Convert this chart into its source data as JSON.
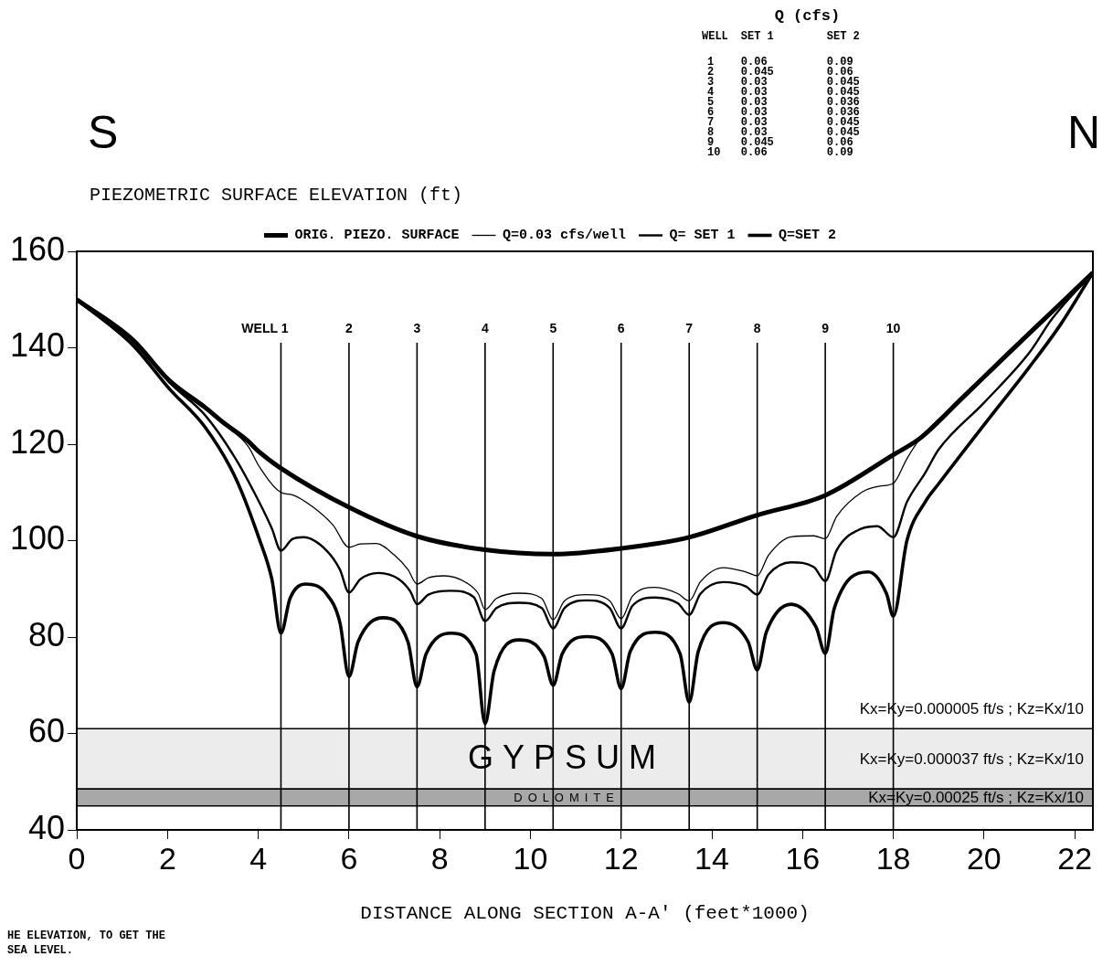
{
  "chart_data": [
    {
      "type": "line",
      "xlabel": "DISTANCE ALONG SECTION A-A' (feet*1000)",
      "ylabel": "PIEZOMETRIC SURFACE ELEVATION (ft)",
      "xlim": [
        0,
        22.4
      ],
      "ylim": [
        40,
        160
      ],
      "xticks": [
        0,
        2,
        4,
        6,
        8,
        10,
        12,
        14,
        16,
        18,
        20,
        22
      ],
      "yticks": [
        40,
        60,
        80,
        100,
        120,
        140,
        160
      ],
      "grid": false,
      "legend": "top",
      "marker": "none",
      "line_style": "solid",
      "series": [
        {
          "name": "ORIG. PIEZO. SURFACE",
          "color": "#000000",
          "x": [
            0,
            1.24,
            2.04,
            2.83,
            3.23,
            3.78,
            4.02,
            4.5,
            6,
            7.5,
            9,
            10.5,
            12,
            13.5,
            15,
            16.5,
            18,
            18.6,
            19.5,
            20.5,
            21.5,
            22.4
          ],
          "values": [
            150,
            141.6,
            133.2,
            127.6,
            124.5,
            120.6,
            118.4,
            115,
            106.9,
            100.9,
            98.1,
            97.2,
            98.4,
            100.7,
            105.3,
            109.4,
            117.8,
            121.3,
            129.4,
            138.5,
            147.5,
            155.6
          ]
        },
        {
          "name": "Q=0.03 cfs/well",
          "color": "#000000",
          "x": [
            0,
            1.24,
            2.04,
            2.83,
            3.23,
            3.78,
            4.02,
            4.5,
            4.75,
            5.2,
            5.65,
            6,
            6.25,
            6.6,
            7.0,
            7.3,
            7.5,
            7.75,
            8.1,
            8.6,
            8.85,
            9,
            9.25,
            9.75,
            10.25,
            10.5,
            10.75,
            11.25,
            11.75,
            12,
            12.25,
            12.75,
            13.25,
            13.5,
            13.75,
            14.25,
            14.75,
            15,
            15.25,
            15.75,
            16.25,
            16.5,
            16.75,
            17.3,
            17.7,
            18,
            18.3,
            18.6,
            19.5,
            20.5,
            21.5,
            22.4
          ],
          "values": [
            150,
            141.6,
            133,
            127.3,
            124.3,
            119.5,
            115.4,
            110,
            109.5,
            107,
            103.2,
            98.6,
            99.3,
            99.4,
            97,
            94,
            91,
            92.3,
            92.7,
            91.2,
            89,
            85.7,
            88,
            89.1,
            88,
            83.6,
            87.5,
            88.8,
            87.5,
            83.8,
            88.5,
            90.3,
            89,
            87.5,
            91.5,
            94.4,
            93.5,
            92.7,
            97,
            100.8,
            101,
            100.4,
            105,
            110,
            111.3,
            111.9,
            117,
            121.3,
            129.4,
            138.5,
            147.5,
            155.6
          ]
        },
        {
          "name": "Q= SET 1",
          "color": "#000000",
          "x": [
            0,
            1.24,
            2.04,
            2.83,
            3.5,
            4.02,
            4.3,
            4.5,
            4.75,
            5.0,
            5.5,
            5.8,
            6,
            6.25,
            6.65,
            7.1,
            7.35,
            7.5,
            7.75,
            8.25,
            8.75,
            9,
            9.25,
            9.75,
            10.25,
            10.5,
            10.75,
            11.25,
            11.75,
            12,
            12.25,
            12.75,
            13.25,
            13.5,
            13.75,
            14.25,
            14.75,
            15,
            15.25,
            15.75,
            16.25,
            16.5,
            16.75,
            17.3,
            17.65,
            18,
            18.3,
            18.7,
            19,
            20,
            21,
            21.5,
            22.4
          ],
          "values": [
            150,
            141.6,
            132.8,
            126,
            117,
            108,
            102.5,
            97.9,
            100.3,
            100.7,
            98,
            94,
            89.2,
            92,
            93.3,
            92,
            89.5,
            86.8,
            88.8,
            89.6,
            88.3,
            83.3,
            86,
            87.1,
            86,
            81.8,
            86,
            87.6,
            86,
            81.8,
            86.5,
            88.2,
            87,
            84.6,
            89,
            91.4,
            90.5,
            88.8,
            93,
            95.5,
            94.5,
            91.6,
            98,
            102.5,
            103,
            100.7,
            108,
            114,
            118.9,
            128.6,
            139,
            146,
            155.6
          ]
        },
        {
          "name": "Q=SET 2",
          "color": "#000000",
          "x": [
            0,
            1.24,
            2.04,
            2.83,
            3.5,
            4.02,
            4.3,
            4.5,
            4.7,
            5.05,
            5.5,
            5.8,
            6,
            6.2,
            6.75,
            7.3,
            7.5,
            7.7,
            8.25,
            8.8,
            9,
            9.2,
            9.75,
            10.3,
            10.5,
            10.7,
            11.25,
            11.8,
            12,
            12.2,
            12.75,
            13.3,
            13.5,
            13.7,
            14.25,
            14.8,
            15,
            15.2,
            15.75,
            16.3,
            16.5,
            16.7,
            17.45,
            17.85,
            18,
            18.3,
            18.7,
            19,
            20,
            21,
            21.7,
            22.4
          ],
          "values": [
            150,
            140.5,
            131.5,
            123.5,
            113,
            100.4,
            92,
            80.8,
            88,
            91,
            89,
            83,
            71.8,
            79,
            84,
            79,
            69.7,
            76.5,
            80.8,
            76.5,
            62,
            73,
            79.4,
            76,
            70,
            76.5,
            80.1,
            76.5,
            69.3,
            77,
            81,
            76.5,
            66.5,
            77,
            83,
            79,
            73.2,
            81,
            86.8,
            82,
            76.6,
            86,
            93.5,
            89,
            84.3,
            100,
            108,
            111.8,
            124,
            136,
            145,
            155.6
          ]
        }
      ],
      "ref_lines": [
        {
          "axis": "x",
          "value": 4.5
        },
        {
          "axis": "x",
          "value": 6
        },
        {
          "axis": "x",
          "value": 7.5
        },
        {
          "axis": "x",
          "value": 9
        },
        {
          "axis": "x",
          "value": 10.5
        },
        {
          "axis": "x",
          "value": 12
        },
        {
          "axis": "x",
          "value": 13.5
        },
        {
          "axis": "x",
          "value": 15
        },
        {
          "axis": "x",
          "value": 16.5
        },
        {
          "axis": "x",
          "value": 18
        }
      ],
      "bands": [
        {
          "axis": "y",
          "from": 48.5,
          "to": 61,
          "label": "GYPSUM",
          "color": "#ececec"
        },
        {
          "axis": "y",
          "from": 45,
          "to": 48.5,
          "label": "DOLOMITE",
          "color": "#a8a8a8"
        }
      ],
      "annotations": [
        "S",
        "N",
        "HE ELEVATION, TO GET THE",
        "SEA LEVEL.",
        "Kx=Ky=0.000005 ft/s ; Kz=Kx/10",
        "Kx=Ky=0.000037 ft/s ; Kz=Kx/10",
        "Kx=Ky=0.00025 ft/s ; Kz=Kx/10",
        "WELL 1",
        "2",
        "3",
        "4",
        "5",
        "6",
        "7",
        "8",
        "9",
        "10"
      ]
    },
    {
      "type": "heatmap",
      "title": "Q (cfs)",
      "ylabel": "WELL",
      "categories": [
        "SET 1",
        "SET 2"
      ],
      "y_categories": [
        "1",
        "2",
        "3",
        "4",
        "5",
        "6",
        "7",
        "8",
        "9",
        "10"
      ],
      "data_labels": true,
      "cells": [
        [
          0.06,
          0.09
        ],
        [
          0.045,
          0.06
        ],
        [
          0.03,
          0.045
        ],
        [
          0.03,
          0.045
        ],
        [
          0.03,
          0.036
        ],
        [
          0.03,
          0.036
        ],
        [
          0.03,
          0.045
        ],
        [
          0.03,
          0.045
        ],
        [
          0.045,
          0.06
        ],
        [
          0.06,
          0.09
        ]
      ]
    }
  ]
}
